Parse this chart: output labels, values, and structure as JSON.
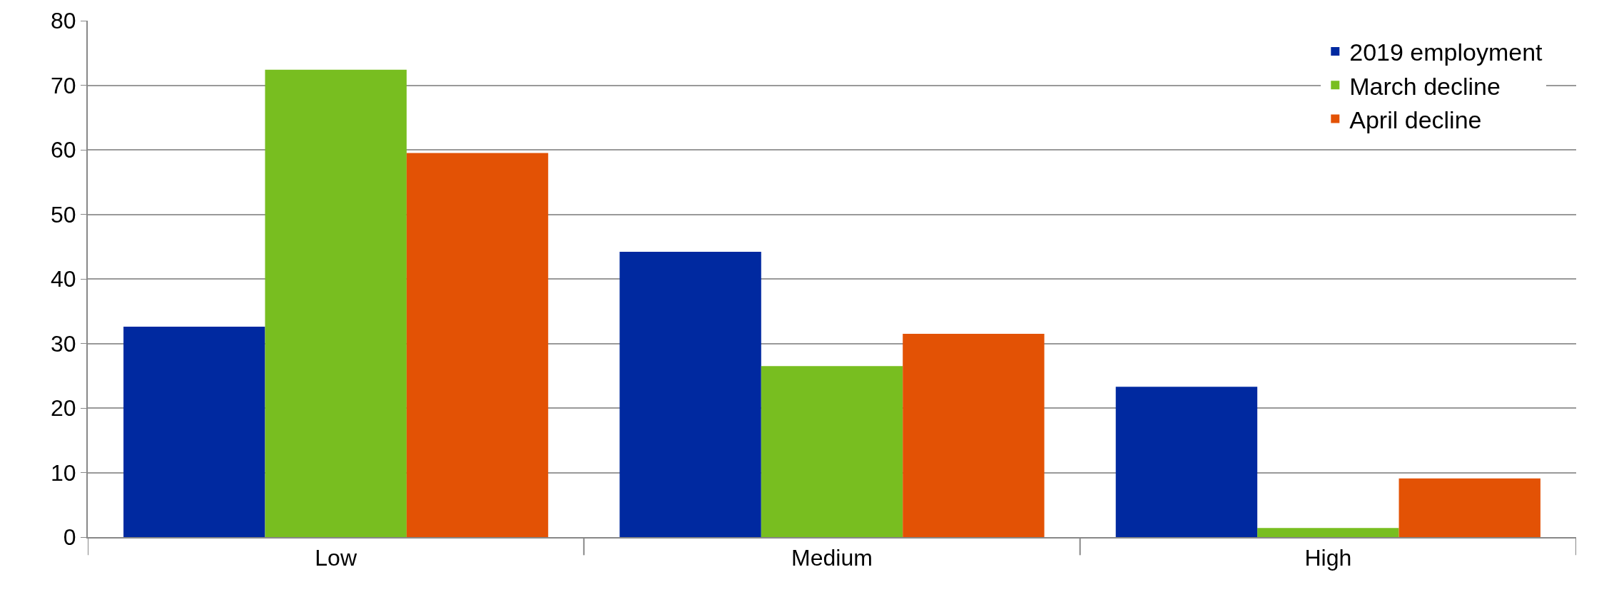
{
  "chart_data": {
    "type": "bar",
    "categories": [
      "Low",
      "Medium",
      "High"
    ],
    "series": [
      {
        "name": "2019 employment",
        "color": "#0029a0",
        "values": [
          32.6,
          44.2,
          23.3
        ]
      },
      {
        "name": "March decline",
        "color": "#78be20",
        "values": [
          72.4,
          26.5,
          1.4
        ]
      },
      {
        "name": "April decline",
        "color": "#e35205",
        "values": [
          59.5,
          31.5,
          9.1
        ]
      }
    ],
    "ylim": [
      0,
      80
    ],
    "yticks": [
      0,
      10,
      20,
      30,
      40,
      50,
      60,
      70,
      80
    ],
    "grid": "y",
    "legend": "top right"
  }
}
